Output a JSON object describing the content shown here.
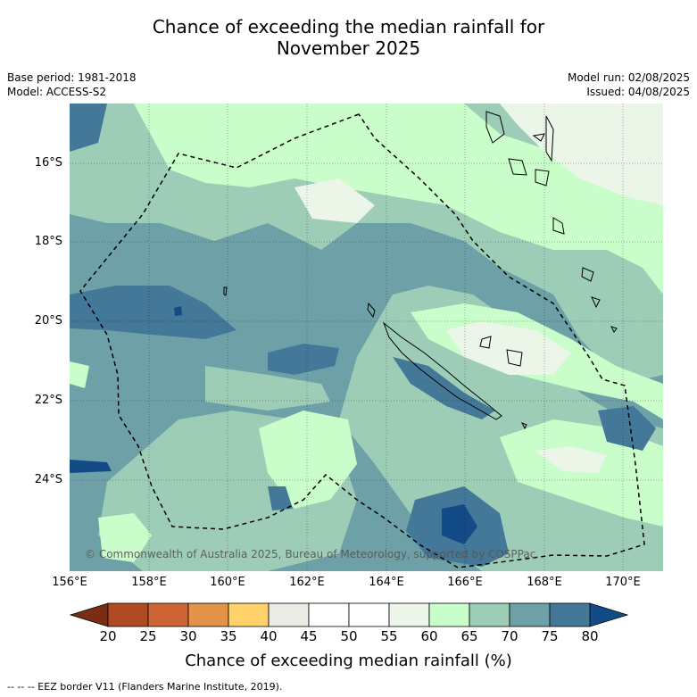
{
  "title_line1": "Chance of exceeding the median rainfall for",
  "title_line2": "November 2025",
  "base_period": "Base period: 1981-2018",
  "model": "Model: ACCESS-S2",
  "model_run": "Model run: 02/08/2025",
  "issued": "Issued: 04/08/2025",
  "copyright": "© Commonwealth of Australia 2025, Bureau of Meteorology, supported by COSPPac",
  "lat_labels": [
    "16°S",
    "18°S",
    "20°S",
    "22°S",
    "24°S"
  ],
  "lon_labels": [
    "156°E",
    "158°E",
    "160°E",
    "162°E",
    "164°E",
    "166°E",
    "168°E",
    "170°E"
  ],
  "colorbar": {
    "ticks": [
      "20",
      "25",
      "30",
      "35",
      "40",
      "45",
      "50",
      "55",
      "60",
      "65",
      "70",
      "75",
      "80"
    ],
    "colors": [
      "#7a2d14",
      "#b04a23",
      "#cc6533",
      "#e29348",
      "#ffd26b",
      "#ebeae5",
      "#ffffff",
      "#ffffff",
      "#ebf5e8",
      "#c9fdc9",
      "#9dcdb6",
      "#6ea1a7",
      "#447898",
      "#134b86"
    ],
    "title": "Chance of exceeding median rainfall (%)"
  },
  "footer": "--  --  -- EEZ border V11 (Flanders Marine Institute, 2019).",
  "map_colors": {
    "c55": "#ebf5e8",
    "c60": "#c9fdc9",
    "c65": "#9dcdb6",
    "c70": "#6ea1a7",
    "c75": "#447898",
    "c80": "#134b86"
  }
}
